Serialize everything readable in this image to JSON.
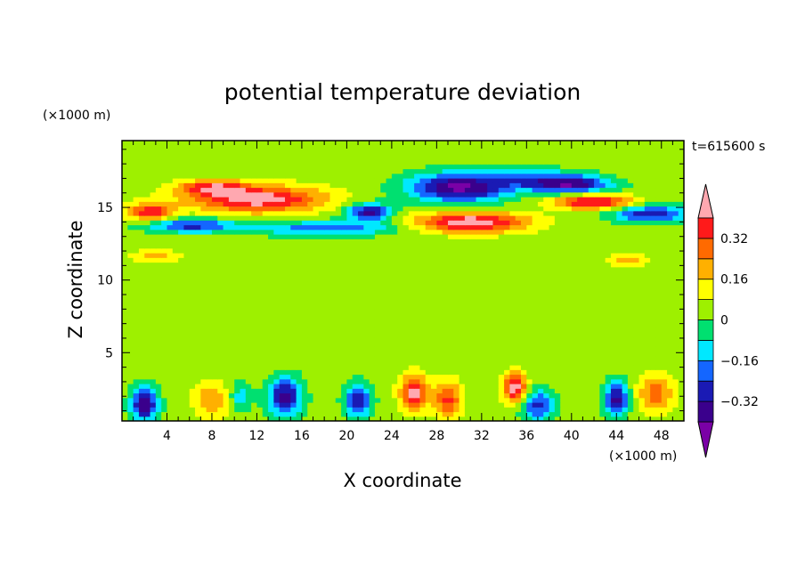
{
  "chart_data": {
    "type": "heatmap",
    "title": "potential temperature deviation",
    "xlabel": "X coordinate",
    "ylabel": "Z coordinate",
    "x_unit": "(×1000 m)",
    "y_unit": "(×1000 m)",
    "time_label": "t=615600 s",
    "xlim": [
      0,
      50
    ],
    "ylim": [
      0.3,
      19.6
    ],
    "xticks": [
      4,
      8,
      12,
      16,
      20,
      24,
      28,
      32,
      36,
      40,
      44,
      48
    ],
    "yticks": [
      5,
      10,
      15
    ],
    "colorbar": {
      "levels": [
        -0.48,
        -0.4,
        -0.32,
        -0.24,
        -0.16,
        -0.08,
        0,
        0.08,
        0.16,
        0.24,
        0.32,
        0.4,
        0.48
      ],
      "colors": [
        "#7a00a6",
        "#3a008c",
        "#1a1ab4",
        "#1466ff",
        "#00e8ff",
        "#00e070",
        "#9ef000",
        "#ffff00",
        "#ffb000",
        "#ff6a00",
        "#ff1a1a",
        "#ffa8b0"
      ],
      "tick_labels": [
        "0.32",
        "0.16",
        "0",
        "−0.16",
        "−0.32"
      ],
      "tick_values": [
        0.32,
        0.16,
        0,
        -0.16,
        -0.32
      ]
    },
    "background_value": 0.04,
    "features": [
      {
        "x": 12,
        "z": 15.6,
        "rx": 6,
        "rz": 0.9,
        "v": 0.42
      },
      {
        "x": 31,
        "z": 14.0,
        "rx": 5,
        "rz": 0.7,
        "v": 0.44
      },
      {
        "x": 42,
        "z": 15.4,
        "rx": 3.5,
        "rz": 0.5,
        "v": 0.4
      },
      {
        "x": 2.5,
        "z": 14.7,
        "rx": 2,
        "rz": 0.6,
        "v": 0.34
      },
      {
        "x": 8,
        "z": 16.4,
        "rx": 3,
        "rz": 0.5,
        "v": 0.3
      },
      {
        "x": 30,
        "z": 16.4,
        "rx": 4.5,
        "rz": 1.0,
        "v": -0.46
      },
      {
        "x": 40,
        "z": 16.6,
        "rx": 3.5,
        "rz": 0.6,
        "v": -0.38
      },
      {
        "x": 22,
        "z": 14.7,
        "rx": 2,
        "rz": 0.6,
        "v": -0.4
      },
      {
        "x": 18,
        "z": 13.6,
        "rx": 7,
        "rz": 0.5,
        "v": -0.24
      },
      {
        "x": 6,
        "z": 13.8,
        "rx": 4,
        "rz": 0.5,
        "v": -0.3
      },
      {
        "x": 47,
        "z": 14.6,
        "rx": 3.5,
        "rz": 0.6,
        "v": -0.34
      },
      {
        "x": 37,
        "z": 17.0,
        "rx": 4,
        "rz": 0.7,
        "v": -0.18
      },
      {
        "x": 3,
        "z": 11.7,
        "rx": 2,
        "rz": 0.4,
        "v": 0.16
      },
      {
        "x": 45,
        "z": 11.4,
        "rx": 1.5,
        "rz": 0.4,
        "v": 0.18
      },
      {
        "x": 20,
        "z": 9,
        "rx": 8,
        "rz": 4,
        "v": -0.02
      },
      {
        "x": 38,
        "z": 8,
        "rx": 7,
        "rz": 4,
        "v": -0.02
      },
      {
        "x": 2,
        "z": 1.5,
        "rx": 1.2,
        "rz": 1.2,
        "v": -0.42
      },
      {
        "x": 14.5,
        "z": 2.0,
        "rx": 1.5,
        "rz": 1.3,
        "v": -0.4
      },
      {
        "x": 21,
        "z": 1.7,
        "rx": 1.2,
        "rz": 1.2,
        "v": -0.34
      },
      {
        "x": 26,
        "z": 2.3,
        "rx": 1.2,
        "rz": 1.2,
        "v": 0.4
      },
      {
        "x": 29,
        "z": 1.8,
        "rx": 1.2,
        "rz": 1.3,
        "v": 0.3
      },
      {
        "x": 35,
        "z": 2.6,
        "rx": 1.0,
        "rz": 1.0,
        "v": 0.44
      },
      {
        "x": 37,
        "z": 1.4,
        "rx": 1.5,
        "rz": 1.1,
        "v": -0.3
      },
      {
        "x": 44,
        "z": 1.8,
        "rx": 1.0,
        "rz": 1.2,
        "v": -0.4
      },
      {
        "x": 47.5,
        "z": 2.2,
        "rx": 1.5,
        "rz": 1.2,
        "v": 0.26
      },
      {
        "x": 8,
        "z": 1.8,
        "rx": 1.5,
        "rz": 1.2,
        "v": 0.2
      },
      {
        "x": 10.5,
        "z": 2.0,
        "rx": 1.0,
        "rz": 1.0,
        "v": -0.16
      }
    ]
  }
}
